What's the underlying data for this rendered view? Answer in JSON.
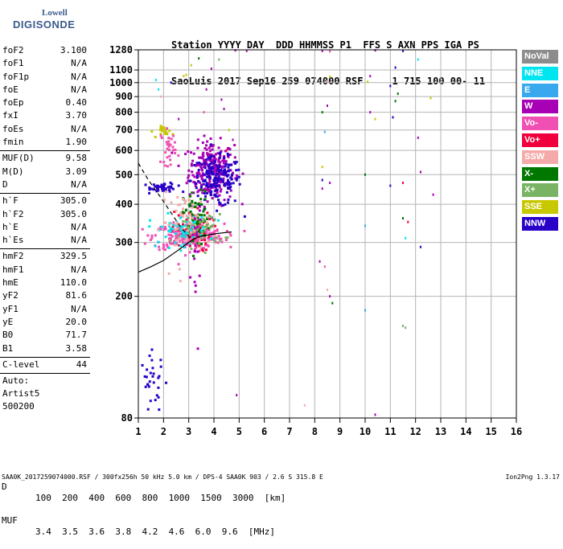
{
  "logo": {
    "line1": "Lowell",
    "line2": "DIGISONDE"
  },
  "header": {
    "line1": "Station YYYY DAY  DDD HHMMSS P1  FFS S AXN PPS IGA PS",
    "line2": "SaoLuis 2017 Sep16 259 074000 RSF     1 715 100 00- 11"
  },
  "params": {
    "group1": [
      {
        "name": "foF2",
        "value": "3.100"
      },
      {
        "name": "foF1",
        "value": "N/A"
      },
      {
        "name": "foF1p",
        "value": "N/A"
      },
      {
        "name": "foE",
        "value": "N/A"
      },
      {
        "name": "foEp",
        "value": "0.40"
      },
      {
        "name": "fxI",
        "value": "3.70"
      },
      {
        "name": "foEs",
        "value": "N/A"
      },
      {
        "name": "fmin",
        "value": "1.90"
      }
    ],
    "group2": [
      {
        "name": "MUF(D)",
        "value": "9.58"
      },
      {
        "name": "M(D)",
        "value": "3.09"
      },
      {
        "name": "D",
        "value": "N/A"
      }
    ],
    "group3": [
      {
        "name": "h`F",
        "value": "305.0"
      },
      {
        "name": "h`F2",
        "value": "305.0"
      },
      {
        "name": "h`E",
        "value": "N/A"
      },
      {
        "name": "h`Es",
        "value": "N/A"
      }
    ],
    "group4": [
      {
        "name": "hmF2",
        "value": "329.5"
      },
      {
        "name": "hmF1",
        "value": "N/A"
      },
      {
        "name": "hmE",
        "value": "110.0"
      },
      {
        "name": "yF2",
        "value": "81.6"
      },
      {
        "name": "yF1",
        "value": "N/A"
      },
      {
        "name": "yE",
        "value": "20.0"
      },
      {
        "name": "B0",
        "value": "71.7"
      },
      {
        "name": "B1",
        "value": "3.58"
      }
    ],
    "clevel": {
      "name": "C-level",
      "value": "44"
    },
    "auto": [
      "Auto:",
      "Artist5",
      "500200"
    ]
  },
  "legend": [
    {
      "label": "NoVal",
      "color": "#8c8c8c"
    },
    {
      "label": "NNE",
      "color": "#00e6f0"
    },
    {
      "label": "E",
      "color": "#3aa8ee"
    },
    {
      "label": "W",
      "color": "#a800b4"
    },
    {
      "label": "Vo-",
      "color": "#f050b4"
    },
    {
      "label": "Vo+",
      "color": "#f0003c"
    },
    {
      "label": "SSW",
      "color": "#f4aaa8"
    },
    {
      "label": "X-",
      "color": "#007800"
    },
    {
      "label": "X+",
      "color": "#78b464"
    },
    {
      "label": "SSE",
      "color": "#c8c800"
    },
    {
      "label": "NNW",
      "color": "#2800c8"
    }
  ],
  "conversion": {
    "row1_label": "D",
    "row1": "100  200  400  600  800  1000  1500  3000  [km]",
    "row2_label": "MUF",
    "row2": "3.4  3.5  3.6  3.8  4.2  4.6  6.0  9.6  [MHz]"
  },
  "footer": "SAA0K_2017259074000.RSF / 300fx256h 50 kHz 5.0 km / DPS-4 SAA0K 903 / 2.6 S 315.8 E",
  "version": "Ion2Png 1.3.17",
  "chart_data": {
    "type": "scatter",
    "xlabel": "",
    "ylabel": "",
    "xlim": [
      1,
      16
    ],
    "ylim": [
      80,
      1280
    ],
    "x_ticks": [
      1,
      2,
      3,
      4,
      5,
      6,
      7,
      8,
      9,
      10,
      11,
      12,
      13,
      14,
      15,
      16
    ],
    "y_ticks": [
      80,
      200,
      300,
      400,
      500,
      600,
      700,
      800,
      900,
      1000,
      1100,
      1280
    ],
    "y_scale": "log",
    "grid": true,
    "traces": [
      {
        "name": "ordinary trace",
        "style": "solid",
        "x": [
          1.0,
          1.5,
          2.0,
          2.5,
          2.8,
          3.0,
          3.2,
          3.5,
          4.0,
          4.7
        ],
        "y": [
          240,
          250,
          262,
          280,
          292,
          300,
          308,
          315,
          320,
          325
        ]
      },
      {
        "name": "profile",
        "style": "dashed",
        "x": [
          1.0,
          1.4,
          1.9,
          2.3,
          2.7,
          3.0,
          3.1
        ],
        "y": [
          545,
          480,
          420,
          375,
          335,
          315,
          300
        ]
      }
    ],
    "clusters": [
      {
        "color": "#a800b4",
        "xc": 3.9,
        "yc": 520,
        "sx": 0.45,
        "sy": 60,
        "n": 260
      },
      {
        "color": "#2800c8",
        "xc": 4.1,
        "yc": 480,
        "sx": 0.5,
        "sy": 45,
        "n": 180
      },
      {
        "color": "#2800c8",
        "xc": 2.0,
        "yc": 455,
        "sx": 0.25,
        "sy": 8,
        "n": 50
      },
      {
        "color": "#f050b4",
        "xc": 3.0,
        "yc": 315,
        "sx": 0.7,
        "sy": 15,
        "n": 260
      },
      {
        "color": "#f0003c",
        "xc": 3.1,
        "yc": 330,
        "sx": 0.4,
        "sy": 25,
        "n": 60
      },
      {
        "color": "#007800",
        "xc": 3.3,
        "yc": 360,
        "sx": 0.25,
        "sy": 40,
        "n": 70
      },
      {
        "color": "#78b464",
        "xc": 3.4,
        "yc": 330,
        "sx": 0.5,
        "sy": 20,
        "n": 60
      },
      {
        "color": "#00e6f0",
        "xc": 2.6,
        "yc": 330,
        "sx": 0.6,
        "sy": 20,
        "n": 60
      },
      {
        "color": "#f4aaa8",
        "xc": 2.9,
        "yc": 350,
        "sx": 0.5,
        "sy": 40,
        "n": 60
      },
      {
        "color": "#c8c800",
        "xc": 2.1,
        "yc": 690,
        "sx": 0.15,
        "sy": 15,
        "n": 20
      },
      {
        "color": "#f050b4",
        "xc": 2.2,
        "yc": 620,
        "sx": 0.15,
        "sy": 40,
        "n": 30
      },
      {
        "color": "#2800c8",
        "xc": 1.6,
        "yc": 105,
        "sx": 0.25,
        "sy": 12,
        "n": 30
      },
      {
        "color": "#a800b4",
        "xc": 3.3,
        "yc": 250,
        "sx": 0.1,
        "sy": 80,
        "n": 20
      }
    ],
    "scatter_points": [
      {
        "x": 8.3,
        "y": 1270,
        "c": "#a800b4"
      },
      {
        "x": 8.6,
        "y": 1265,
        "c": "#f050b4"
      },
      {
        "x": 4.85,
        "y": 1275,
        "c": "#a800b4"
      },
      {
        "x": 5.3,
        "y": 1270,
        "c": "#a800b4"
      },
      {
        "x": 10.4,
        "y": 1275,
        "c": "#a800b4"
      },
      {
        "x": 11.5,
        "y": 1270,
        "c": "#2800c8"
      },
      {
        "x": 12.1,
        "y": 1190,
        "c": "#00e6f0"
      },
      {
        "x": 11.2,
        "y": 1120,
        "c": "#2800c8"
      },
      {
        "x": 10.2,
        "y": 1050,
        "c": "#a800b4"
      },
      {
        "x": 8.6,
        "y": 1045,
        "c": "#c8c800"
      },
      {
        "x": 8.5,
        "y": 1010,
        "c": "#f4aaa8"
      },
      {
        "x": 10.1,
        "y": 1005,
        "c": "#c8c800"
      },
      {
        "x": 11.0,
        "y": 975,
        "c": "#2800c8"
      },
      {
        "x": 11.3,
        "y": 920,
        "c": "#007800"
      },
      {
        "x": 11.2,
        "y": 870,
        "c": "#007800"
      },
      {
        "x": 12.6,
        "y": 890,
        "c": "#c8c800"
      },
      {
        "x": 8.5,
        "y": 840,
        "c": "#a800b4"
      },
      {
        "x": 8.3,
        "y": 800,
        "c": "#007800"
      },
      {
        "x": 10.2,
        "y": 800,
        "c": "#a800b4"
      },
      {
        "x": 10.4,
        "y": 760,
        "c": "#c8c800"
      },
      {
        "x": 11.1,
        "y": 770,
        "c": "#2800c8"
      },
      {
        "x": 12.1,
        "y": 660,
        "c": "#a800b4"
      },
      {
        "x": 8.4,
        "y": 690,
        "c": "#3aa8ee"
      },
      {
        "x": 4.6,
        "y": 700,
        "c": "#c8c800"
      },
      {
        "x": 4.75,
        "y": 650,
        "c": "#a800b4"
      },
      {
        "x": 4.5,
        "y": 600,
        "c": "#f0003c"
      },
      {
        "x": 8.3,
        "y": 530,
        "c": "#c8c800"
      },
      {
        "x": 10.0,
        "y": 500,
        "c": "#007800"
      },
      {
        "x": 8.3,
        "y": 480,
        "c": "#2800c8"
      },
      {
        "x": 8.6,
        "y": 470,
        "c": "#a800b4"
      },
      {
        "x": 8.3,
        "y": 450,
        "c": "#a800b4"
      },
      {
        "x": 12.2,
        "y": 510,
        "c": "#a800b4"
      },
      {
        "x": 11.5,
        "y": 470,
        "c": "#f0003c"
      },
      {
        "x": 11.0,
        "y": 460,
        "c": "#2800c8"
      },
      {
        "x": 12.7,
        "y": 430,
        "c": "#a800b4"
      },
      {
        "x": 11.5,
        "y": 360,
        "c": "#007800"
      },
      {
        "x": 11.7,
        "y": 350,
        "c": "#f0003c"
      },
      {
        "x": 10.0,
        "y": 340,
        "c": "#3aa8ee"
      },
      {
        "x": 11.6,
        "y": 310,
        "c": "#00e6f0"
      },
      {
        "x": 12.2,
        "y": 290,
        "c": "#2800c8"
      },
      {
        "x": 8.2,
        "y": 260,
        "c": "#a800b4"
      },
      {
        "x": 8.4,
        "y": 250,
        "c": "#f050b4"
      },
      {
        "x": 8.5,
        "y": 210,
        "c": "#f4aaa8"
      },
      {
        "x": 8.6,
        "y": 200,
        "c": "#a800b4"
      },
      {
        "x": 8.7,
        "y": 190,
        "c": "#007800"
      },
      {
        "x": 10.0,
        "y": 180,
        "c": "#3aa8ee"
      },
      {
        "x": 11.5,
        "y": 160,
        "c": "#78b464"
      },
      {
        "x": 11.6,
        "y": 158,
        "c": "#78b464"
      },
      {
        "x": 7.6,
        "y": 88,
        "c": "#f4aaa8"
      },
      {
        "x": 10.4,
        "y": 82,
        "c": "#a800b4"
      },
      {
        "x": 4.9,
        "y": 95,
        "c": "#a800b4"
      },
      {
        "x": 1.8,
        "y": 950,
        "c": "#00e6f0"
      },
      {
        "x": 1.9,
        "y": 900,
        "c": "#f4aaa8"
      },
      {
        "x": 2.8,
        "y": 1050,
        "c": "#c8c800"
      },
      {
        "x": 2.9,
        "y": 1060,
        "c": "#c8c800"
      },
      {
        "x": 3.1,
        "y": 1140,
        "c": "#c8c800"
      },
      {
        "x": 3.9,
        "y": 1110,
        "c": "#a800b4"
      },
      {
        "x": 4.2,
        "y": 1190,
        "c": "#78b464"
      },
      {
        "x": 3.4,
        "y": 1200,
        "c": "#007800"
      },
      {
        "x": 3.7,
        "y": 950,
        "c": "#a800b4"
      },
      {
        "x": 3.6,
        "y": 800,
        "c": "#f050b4"
      },
      {
        "x": 2.6,
        "y": 760,
        "c": "#a800b4"
      },
      {
        "x": 2.3,
        "y": 1000,
        "c": "#2800c8"
      },
      {
        "x": 1.7,
        "y": 1020,
        "c": "#00e6f0"
      },
      {
        "x": 4.3,
        "y": 880,
        "c": "#a800b4"
      },
      {
        "x": 4.4,
        "y": 820,
        "c": "#a800b4"
      }
    ]
  }
}
